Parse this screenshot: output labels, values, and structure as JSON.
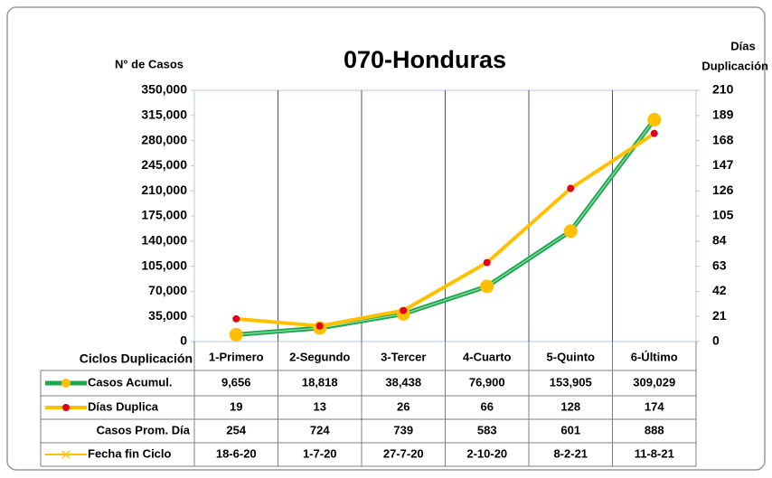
{
  "chart_data": {
    "type": "line",
    "title": "070-Honduras",
    "y_label": "N° de Casos",
    "y2_label": [
      "Días",
      "Duplicación"
    ],
    "x_label": "Ciclos Duplicación",
    "categories": [
      "1-Primero",
      "2-Segundo",
      "3-Tercer",
      "4-Cuarto",
      "5-Quinto",
      "6-Último"
    ],
    "series": [
      {
        "name": "Casos Acumul.",
        "color": "#1fa84f",
        "marker_color": "#ffc000",
        "values": [
          9656,
          18818,
          38438,
          76900,
          153905,
          309029
        ],
        "value_labels": [
          "9,656",
          "18,818",
          "38,438",
          "76,900",
          "153,905",
          "309,029"
        ]
      },
      {
        "name": "Días Duplica",
        "color": "#ffc000",
        "marker_color": "#e3001b",
        "axis": "y2",
        "values": [
          19,
          13,
          26,
          66,
          128,
          174
        ]
      }
    ],
    "data_table": [
      {
        "name": "Casos Prom. Día",
        "values": [
          254,
          724,
          739,
          583,
          601,
          888
        ]
      },
      {
        "name": "Fecha fin Ciclo",
        "color": "#ffc000",
        "values": [
          "18-6-20",
          "1-7-20",
          "27-7-20",
          "2-10-20",
          "8-2-21",
          "11-8-21"
        ]
      }
    ],
    "ylim": [
      0,
      350000
    ],
    "yticks": [
      0,
      {
        "value": 35000,
        "label": "35,000"
      },
      {
        "value": 70000,
        "label": "70,000"
      },
      {
        "value": 105000,
        "label": "105,000"
      },
      {
        "value": 140000,
        "label": "140,000"
      },
      {
        "value": 175000,
        "label": "175,000"
      },
      {
        "value": 210000,
        "label": "210,000"
      },
      {
        "value": 245000,
        "label": "245,000"
      },
      {
        "value": 280000,
        "label": "280,000"
      },
      {
        "value": 315000,
        "label": "315,000"
      },
      {
        "value": 350000,
        "label": "350,000"
      }
    ],
    "y2lim": [
      0,
      210
    ],
    "y2ticks": [
      0,
      21,
      42,
      63,
      84,
      105,
      126,
      147,
      168,
      189,
      210
    ],
    "grid": "vertical"
  }
}
